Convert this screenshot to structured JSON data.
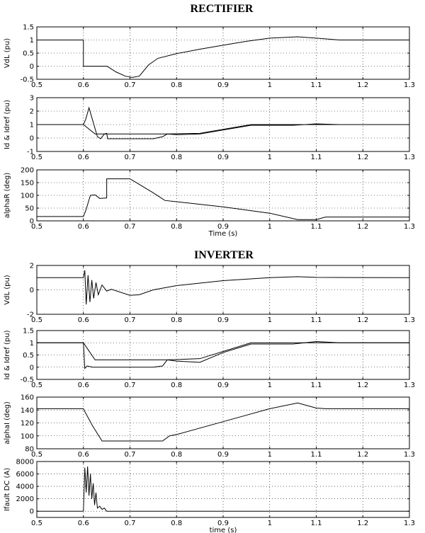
{
  "titles": {
    "rectifier": "RECTIFIER",
    "inverter": "INVERTER"
  },
  "chart_data": [
    {
      "type": "line",
      "panel": "rectifier-vdl",
      "ylabel": "VdL (pu)",
      "xlabel": "",
      "xlim": [
        0.5,
        1.3
      ],
      "ylim": [
        -0.5,
        1.5
      ],
      "xticks": [
        0.5,
        0.6,
        0.7,
        0.8,
        0.9,
        1,
        1.1,
        1.2,
        1.3
      ],
      "yticks": [
        -0.5,
        0,
        0.5,
        1,
        1.5
      ],
      "grid": true,
      "series": [
        {
          "values": [
            [
              0.5,
              1
            ],
            [
              0.6,
              1
            ],
            [
              0.6,
              0
            ],
            [
              0.65,
              0
            ],
            [
              0.655,
              -0.05
            ],
            [
              0.67,
              -0.22
            ],
            [
              0.69,
              -0.38
            ],
            [
              0.705,
              -0.43
            ],
            [
              0.72,
              -0.38
            ],
            [
              0.74,
              0.05
            ],
            [
              0.76,
              0.3
            ],
            [
              0.8,
              0.48
            ],
            [
              0.85,
              0.65
            ],
            [
              0.9,
              0.8
            ],
            [
              0.95,
              0.95
            ],
            [
              1.0,
              1.07
            ],
            [
              1.06,
              1.12
            ],
            [
              1.1,
              1.07
            ],
            [
              1.15,
              1.0
            ],
            [
              1.3,
              1.0
            ]
          ]
        }
      ]
    },
    {
      "type": "line",
      "panel": "rectifier-id",
      "ylabel": "Id & Idref (pu)",
      "xlabel": "",
      "xlim": [
        0.5,
        1.3
      ],
      "ylim": [
        -1,
        3
      ],
      "xticks": [
        0.5,
        0.6,
        0.7,
        0.8,
        0.9,
        1,
        1.1,
        1.2,
        1.3
      ],
      "yticks": [
        -1,
        0,
        1,
        2,
        3
      ],
      "grid": true,
      "series": [
        {
          "values": [
            [
              0.5,
              1
            ],
            [
              0.6,
              1
            ],
            [
              0.605,
              1.4
            ],
            [
              0.612,
              2.25
            ],
            [
              0.62,
              1.3
            ],
            [
              0.63,
              0.1
            ],
            [
              0.637,
              -0.05
            ],
            [
              0.645,
              0.3
            ],
            [
              0.65,
              0.35
            ],
            [
              0.652,
              -0.05
            ],
            [
              0.75,
              -0.05
            ],
            [
              0.77,
              0.1
            ],
            [
              0.78,
              0.3
            ],
            [
              0.8,
              0.25
            ],
            [
              0.85,
              0.3
            ],
            [
              0.9,
              0.6
            ],
            [
              0.96,
              0.95
            ],
            [
              1.05,
              0.95
            ],
            [
              1.1,
              1.05
            ],
            [
              1.15,
              1.0
            ],
            [
              1.3,
              1.0
            ]
          ]
        },
        {
          "values": [
            [
              0.5,
              1
            ],
            [
              0.6,
              1
            ],
            [
              0.625,
              0.3
            ],
            [
              0.78,
              0.3
            ],
            [
              0.85,
              0.35
            ],
            [
              0.96,
              1.0
            ],
            [
              1.3,
              1.0
            ]
          ]
        }
      ]
    },
    {
      "type": "line",
      "panel": "rectifier-alpha",
      "ylabel": "alphaR (deg)",
      "xlabel": "Time (s)",
      "xlim": [
        0.5,
        1.3
      ],
      "ylim": [
        0,
        200
      ],
      "xticks": [
        0.5,
        0.6,
        0.7,
        0.8,
        0.9,
        1,
        1.1,
        1.2,
        1.3
      ],
      "yticks": [
        0,
        50,
        100,
        150,
        200
      ],
      "grid": true,
      "series": [
        {
          "values": [
            [
              0.5,
              17
            ],
            [
              0.6,
              17
            ],
            [
              0.605,
              40
            ],
            [
              0.615,
              100
            ],
            [
              0.625,
              102
            ],
            [
              0.635,
              88
            ],
            [
              0.65,
              90
            ],
            [
              0.65,
              165
            ],
            [
              0.7,
              165
            ],
            [
              0.75,
              110
            ],
            [
              0.775,
              80
            ],
            [
              0.8,
              75
            ],
            [
              0.9,
              55
            ],
            [
              1.0,
              30
            ],
            [
              1.06,
              5
            ],
            [
              1.1,
              5
            ],
            [
              1.12,
              15
            ],
            [
              1.3,
              15
            ]
          ]
        }
      ]
    },
    {
      "type": "line",
      "panel": "inverter-vdl",
      "ylabel": "VdL (pu)",
      "xlabel": "",
      "xlim": [
        0.5,
        1.3
      ],
      "ylim": [
        -2,
        2
      ],
      "xticks": [
        0.5,
        0.6,
        0.7,
        0.8,
        0.9,
        1,
        1.1,
        1.2,
        1.3
      ],
      "yticks": [
        -2,
        0,
        2
      ],
      "grid": true,
      "series": [
        {
          "values": [
            [
              0.5,
              1
            ],
            [
              0.6,
              1
            ],
            [
              0.603,
              1.6
            ],
            [
              0.606,
              -1.2
            ],
            [
              0.61,
              1.2
            ],
            [
              0.614,
              -1.0
            ],
            [
              0.618,
              0.8
            ],
            [
              0.622,
              -0.7
            ],
            [
              0.627,
              0.6
            ],
            [
              0.632,
              -0.4
            ],
            [
              0.64,
              0.4
            ],
            [
              0.65,
              -0.1
            ],
            [
              0.66,
              0.05
            ],
            [
              0.7,
              -0.45
            ],
            [
              0.72,
              -0.4
            ],
            [
              0.75,
              0.0
            ],
            [
              0.8,
              0.35
            ],
            [
              0.9,
              0.75
            ],
            [
              1.0,
              1.0
            ],
            [
              1.06,
              1.08
            ],
            [
              1.1,
              1.02
            ],
            [
              1.3,
              1.0
            ]
          ]
        }
      ]
    },
    {
      "type": "line",
      "panel": "inverter-id",
      "ylabel": "Id & Idref (pu)",
      "xlabel": "",
      "xlim": [
        0.5,
        1.3
      ],
      "ylim": [
        -0.5,
        1.5
      ],
      "xticks": [
        0.5,
        0.6,
        0.7,
        0.8,
        0.9,
        1,
        1.1,
        1.2,
        1.3
      ],
      "yticks": [
        -0.5,
        0,
        0.5,
        1,
        1.5
      ],
      "grid": true,
      "series": [
        {
          "values": [
            [
              0.5,
              1
            ],
            [
              0.6,
              1
            ],
            [
              0.603,
              -0.05
            ],
            [
              0.608,
              0.05
            ],
            [
              0.62,
              0.0
            ],
            [
              0.75,
              0.0
            ],
            [
              0.77,
              0.05
            ],
            [
              0.78,
              0.3
            ],
            [
              0.8,
              0.25
            ],
            [
              0.85,
              0.2
            ],
            [
              0.9,
              0.6
            ],
            [
              0.96,
              0.95
            ],
            [
              1.05,
              0.95
            ],
            [
              1.1,
              1.05
            ],
            [
              1.15,
              1.0
            ],
            [
              1.3,
              1.0
            ]
          ]
        },
        {
          "values": [
            [
              0.5,
              1
            ],
            [
              0.6,
              1
            ],
            [
              0.625,
              0.3
            ],
            [
              0.78,
              0.3
            ],
            [
              0.85,
              0.35
            ],
            [
              0.96,
              1.0
            ],
            [
              1.3,
              1.0
            ]
          ]
        }
      ]
    },
    {
      "type": "line",
      "panel": "inverter-alpha",
      "ylabel": "alphaI (deg)",
      "xlabel": "",
      "xlim": [
        0.5,
        1.3
      ],
      "ylim": [
        80,
        160
      ],
      "xticks": [
        0.5,
        0.6,
        0.7,
        0.8,
        0.9,
        1,
        1.1,
        1.2,
        1.3
      ],
      "yticks": [
        80,
        100,
        120,
        140,
        160
      ],
      "grid": true,
      "series": [
        {
          "values": [
            [
              0.5,
              142
            ],
            [
              0.6,
              142
            ],
            [
              0.605,
              135
            ],
            [
              0.62,
              115
            ],
            [
              0.64,
              92
            ],
            [
              0.77,
              92
            ],
            [
              0.785,
              100
            ],
            [
              0.8,
              102
            ],
            [
              0.85,
              112
            ],
            [
              0.9,
              122
            ],
            [
              0.95,
              132
            ],
            [
              1.0,
              142
            ],
            [
              1.06,
              151
            ],
            [
              1.1,
              143
            ],
            [
              1.12,
              142
            ],
            [
              1.3,
              142
            ]
          ]
        }
      ]
    },
    {
      "type": "line",
      "panel": "inverter-ifault",
      "ylabel": "Ifault DC (A)",
      "xlabel": "time (s)",
      "xlim": [
        0.5,
        1.3
      ],
      "ylim": [
        -1000,
        8000
      ],
      "xticks": [
        0.5,
        0.6,
        0.7,
        0.8,
        0.9,
        1,
        1.1,
        1.2,
        1.3
      ],
      "yticks": [
        0,
        2000,
        4000,
        6000,
        8000
      ],
      "grid": true,
      "series": [
        {
          "values": [
            [
              0.5,
              0
            ],
            [
              0.6,
              0
            ],
            [
              0.603,
              7000
            ],
            [
              0.606,
              3000
            ],
            [
              0.609,
              7200
            ],
            [
              0.612,
              2500
            ],
            [
              0.615,
              6000
            ],
            [
              0.618,
              2000
            ],
            [
              0.621,
              4500
            ],
            [
              0.624,
              1000
            ],
            [
              0.627,
              3000
            ],
            [
              0.63,
              500
            ],
            [
              0.635,
              800
            ],
            [
              0.64,
              300
            ],
            [
              0.645,
              500
            ],
            [
              0.65,
              0
            ],
            [
              1.3,
              0
            ]
          ]
        }
      ]
    }
  ]
}
